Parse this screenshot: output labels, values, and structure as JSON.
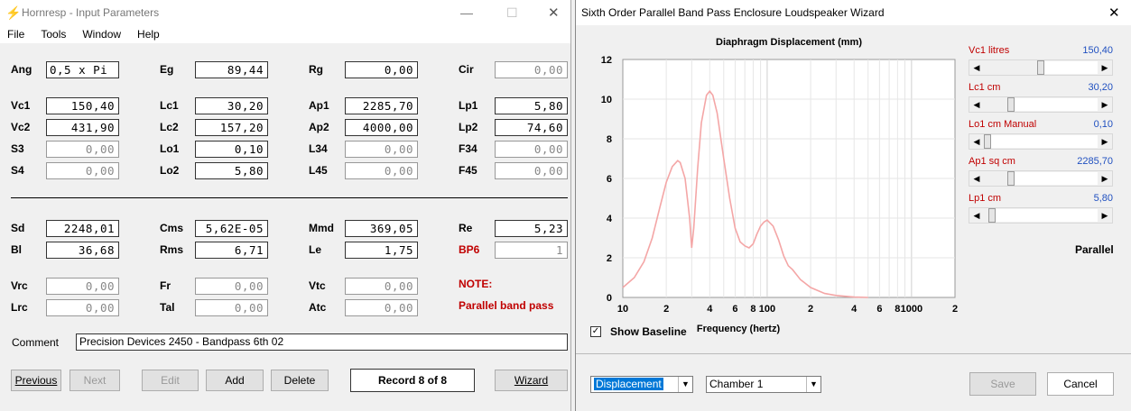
{
  "input": {
    "title": "Hornresp - Input Parameters",
    "menu": [
      "File",
      "Tools",
      "Window",
      "Help"
    ],
    "params": [
      {
        "label": "Ang",
        "value": "0,5 x Pi",
        "align": "left"
      },
      {
        "label": "Eg",
        "value": "89,44"
      },
      {
        "label": "Rg",
        "value": "0,00"
      },
      {
        "label": "Cir",
        "value": "0,00",
        "disabled": true
      },
      {
        "label": "Vc1",
        "value": "150,40"
      },
      {
        "label": "Lc1",
        "value": "30,20"
      },
      {
        "label": "Ap1",
        "value": "2285,70"
      },
      {
        "label": "Lp1",
        "value": "5,80"
      },
      {
        "label": "Vc2",
        "value": "431,90"
      },
      {
        "label": "Lc2",
        "value": "157,20"
      },
      {
        "label": "Ap2",
        "value": "4000,00"
      },
      {
        "label": "Lp2",
        "value": "74,60"
      },
      {
        "label": "S3",
        "value": "0,00",
        "disabled": true
      },
      {
        "label": "Lo1",
        "value": "0,10"
      },
      {
        "label": "L34",
        "value": "0,00",
        "disabled": true
      },
      {
        "label": "F34",
        "value": "0,00",
        "disabled": true
      },
      {
        "label": "S4",
        "value": "0,00",
        "disabled": true
      },
      {
        "label": "Lo2",
        "value": "5,80"
      },
      {
        "label": "L45",
        "value": "0,00",
        "disabled": true
      },
      {
        "label": "F45",
        "value": "0,00",
        "disabled": true
      },
      {
        "label": "Sd",
        "value": "2248,01"
      },
      {
        "label": "Cms",
        "value": "5,62E-05"
      },
      {
        "label": "Mmd",
        "value": "369,05"
      },
      {
        "label": "Re",
        "value": "5,23"
      },
      {
        "label": "Bl",
        "value": "36,68"
      },
      {
        "label": "Rms",
        "value": "6,71"
      },
      {
        "label": "Le",
        "value": "1,75"
      },
      {
        "label": "BP6",
        "value": "1",
        "disabled": true,
        "red": true
      },
      {
        "label": "Vrc",
        "value": "0,00",
        "disabled": true
      },
      {
        "label": "Fr",
        "value": "0,00",
        "disabled": true
      },
      {
        "label": "Vtc",
        "value": "0,00",
        "disabled": true
      },
      {
        "label": "Lrc",
        "value": "0,00",
        "disabled": true
      },
      {
        "label": "Tal",
        "value": "0,00",
        "disabled": true
      },
      {
        "label": "Atc",
        "value": "0,00",
        "disabled": true
      }
    ],
    "note_label": "NOTE:",
    "note_text": "Parallel band pass",
    "comment_label": "Comment",
    "comment_value": "Precision Devices 2450 - Bandpass 6th 02",
    "buttons": {
      "previous": "Previous",
      "next": "Next",
      "edit": "Edit",
      "add": "Add",
      "delete": "Delete",
      "record": "Record 8 of 8",
      "wizard": "Wizard"
    }
  },
  "wizard": {
    "title": "Sixth Order Parallel Band Pass Enclosure Loudspeaker Wizard",
    "close": "✕",
    "sliders": [
      {
        "label": "Vc1  litres",
        "value": "150,40",
        "level": 0.5
      },
      {
        "label": "Lc1  cm",
        "value": "30,20",
        "level": 0.22
      },
      {
        "label": "Lo1  cm  Manual",
        "value": "0,10",
        "level": 0.0
      },
      {
        "label": "Ap1  sq cm",
        "value": "2285,70",
        "level": 0.22
      },
      {
        "label": "Lp1  cm",
        "value": "5,80",
        "level": 0.04
      }
    ],
    "mode_label": "Parallel",
    "show_baseline": "Show Baseline",
    "display_select": "Displacement",
    "chamber_select": "Chamber 1",
    "save": "Save",
    "cancel": "Cancel"
  },
  "chart_data": {
    "type": "line",
    "title": "Diaphragm Displacement (mm)",
    "xlabel": "Frequency (hertz)",
    "ylabel": "",
    "x_scale": "log",
    "xlim": [
      10,
      2000
    ],
    "ylim": [
      0,
      12
    ],
    "yticks": [
      0,
      2,
      4,
      6,
      8,
      10,
      12
    ],
    "xtick_labels": [
      {
        "x": 10,
        "label": "10"
      },
      {
        "x": 20,
        "label": "2"
      },
      {
        "x": 40,
        "label": "4"
      },
      {
        "x": 60,
        "label": "6"
      },
      {
        "x": 80,
        "label": "8"
      },
      {
        "x": 100,
        "label": "100"
      },
      {
        "x": 200,
        "label": "2"
      },
      {
        "x": 400,
        "label": "4"
      },
      {
        "x": 600,
        "label": "6"
      },
      {
        "x": 800,
        "label": "8"
      },
      {
        "x": 1000,
        "label": "1000"
      },
      {
        "x": 2000,
        "label": "2"
      }
    ],
    "grid": true,
    "line_color": "#f4a6a6",
    "series": [
      {
        "x": [
          10,
          12,
          14,
          16,
          18,
          20,
          22,
          24,
          25,
          27,
          29,
          30,
          31,
          33,
          35,
          38,
          40,
          42,
          45,
          50,
          55,
          60,
          65,
          70,
          75,
          80,
          85,
          90,
          95,
          100,
          110,
          120,
          130,
          140,
          150,
          170,
          200,
          250,
          300,
          400,
          500
        ],
        "y": [
          0.5,
          1.0,
          1.8,
          3.0,
          4.5,
          5.8,
          6.6,
          6.9,
          6.8,
          6.0,
          4.0,
          2.5,
          3.5,
          6.5,
          8.8,
          10.2,
          10.4,
          10.2,
          9.3,
          7.0,
          5.0,
          3.5,
          2.8,
          2.6,
          2.5,
          2.7,
          3.2,
          3.6,
          3.8,
          3.9,
          3.6,
          2.9,
          2.1,
          1.6,
          1.4,
          0.9,
          0.5,
          0.2,
          0.1,
          0.02,
          0.0
        ]
      }
    ]
  }
}
